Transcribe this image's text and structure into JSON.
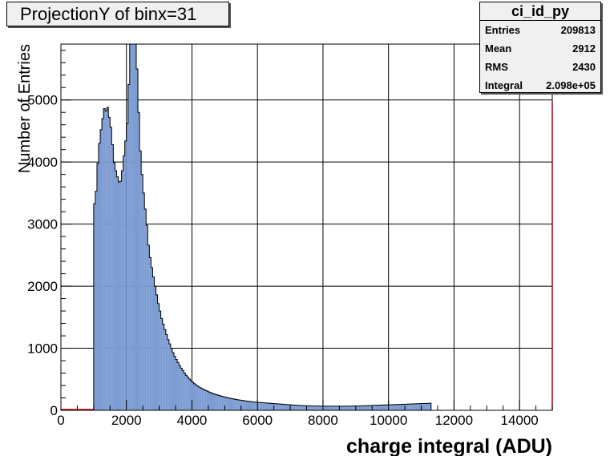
{
  "title": "ProjectionY of binx=31",
  "stats": {
    "name": "ci_id_py",
    "rows": [
      {
        "label": "Entries",
        "value": "209813"
      },
      {
        "label": "Mean",
        "value": "2912"
      },
      {
        "label": "RMS",
        "value": "2430"
      },
      {
        "label": "Integral",
        "value": "2.098e+05"
      }
    ]
  },
  "colors": {
    "fill": "#7b9bd2",
    "frame": "#000000",
    "grid": "#000000",
    "edge": "#aa0000"
  },
  "chart_data": {
    "type": "bar",
    "xlabel": "charge integral (ADU)",
    "ylabel": "Number of Entries",
    "xlim": [
      0,
      15000
    ],
    "ylim": [
      0,
      5900
    ],
    "grid": true,
    "xticks": [
      "0",
      "2000",
      "4000",
      "6000",
      "8000",
      "10000",
      "12000",
      "14000"
    ],
    "yticks": [
      "0",
      "1000",
      "2000",
      "3000",
      "4000",
      "5000"
    ],
    "bin_start": 1000,
    "bin_width": 50,
    "values": [
      3330,
      3530,
      3980,
      4300,
      4520,
      4700,
      4860,
      4820,
      4880,
      4720,
      4560,
      4280,
      3990,
      3860,
      3760,
      3680,
      3690,
      3860,
      4100,
      4340,
      4620,
      5250,
      5940,
      6200,
      6180,
      5960,
      5500,
      4800,
      4180,
      3800,
      3500,
      3240,
      2980,
      2660,
      2460,
      2300,
      2150,
      2000,
      1860,
      1720,
      1600,
      1480,
      1390,
      1300,
      1220,
      1140,
      1070,
      1000,
      930,
      870,
      820,
      770,
      720,
      680,
      640,
      600,
      565,
      535,
      505,
      480,
      455,
      430,
      410,
      392,
      375,
      360,
      345,
      332,
      320,
      308,
      296,
      285,
      275,
      265,
      256,
      248,
      240,
      232,
      225,
      218,
      211,
      205,
      199,
      193,
      188,
      183,
      178,
      173,
      168,
      164,
      160,
      156,
      152,
      148,
      145,
      142,
      139,
      136,
      133,
      130,
      128,
      126,
      124,
      122,
      120,
      118,
      116,
      114,
      112,
      110,
      108,
      106,
      104,
      102,
      100,
      98,
      96,
      94,
      92,
      90,
      88,
      86,
      84,
      82,
      80,
      79,
      78,
      77,
      76,
      75,
      74,
      73,
      72,
      71,
      70,
      70,
      69,
      69,
      68,
      68,
      67,
      67,
      66,
      66,
      66,
      66,
      66,
      66,
      66,
      66,
      66,
      66,
      66,
      66,
      67,
      67,
      68,
      68,
      69,
      69,
      70,
      70,
      71,
      72,
      73,
      74,
      75,
      76,
      77,
      78,
      79,
      80,
      81,
      82,
      83,
      84,
      85,
      86,
      87,
      88,
      89,
      90,
      91,
      92,
      93,
      94,
      95,
      96,
      97,
      98,
      99,
      100,
      101,
      102,
      103,
      104,
      105,
      106,
      107,
      108,
      109,
      110,
      111,
      112,
      113,
      114
    ]
  }
}
